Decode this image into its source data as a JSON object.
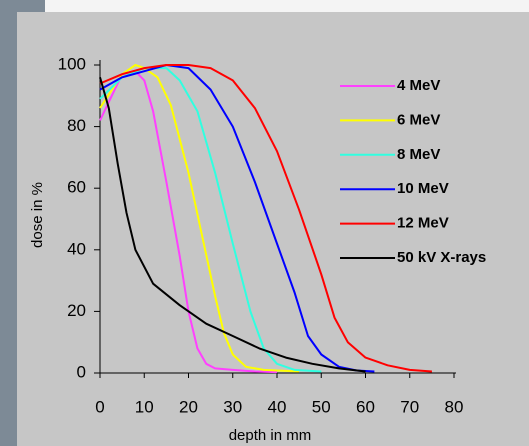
{
  "chart_data": {
    "type": "line",
    "xlabel": "depth in mm",
    "ylabel": "dose in %",
    "xlim": [
      0,
      80
    ],
    "xticks": [
      0,
      10,
      20,
      30,
      40,
      50,
      60,
      70,
      80
    ],
    "ylim": [
      0,
      100
    ],
    "yticks": [
      0,
      20,
      40,
      60,
      80,
      100
    ],
    "grid": false,
    "legend": "upper right",
    "series": [
      {
        "name": "4 MeV",
        "color": "#ff40ff",
        "x": [
          0,
          5,
          8,
          10,
          12,
          15,
          18,
          20,
          22,
          24,
          26,
          30,
          35,
          40
        ],
        "values": [
          82,
          97,
          98,
          95,
          85,
          62,
          38,
          20,
          8,
          3,
          1.5,
          1,
          0.5,
          0.3
        ]
      },
      {
        "name": "6 MeV",
        "color": "#ffff00",
        "x": [
          0,
          5,
          8,
          10,
          13,
          16,
          20,
          23,
          26,
          28,
          30,
          33,
          37,
          45
        ],
        "values": [
          86,
          97,
          100,
          99,
          96,
          87,
          65,
          45,
          25,
          13,
          6,
          2,
          1,
          0.5
        ]
      },
      {
        "name": "8 MeV",
        "color": "#30ffe0",
        "x": [
          0,
          5,
          10,
          15,
          18,
          22,
          26,
          30,
          34,
          37,
          40,
          44,
          50
        ],
        "values": [
          89,
          96,
          99,
          99,
          95,
          85,
          65,
          42,
          20,
          8,
          3,
          1,
          0.5
        ]
      },
      {
        "name": "10 MeV",
        "color": "#0000ff",
        "x": [
          0,
          5,
          10,
          15,
          20,
          25,
          30,
          35,
          40,
          44,
          47,
          50,
          54,
          58,
          62
        ],
        "values": [
          92,
          96,
          98,
          100,
          99,
          92,
          80,
          62,
          42,
          26,
          12,
          6,
          2,
          0.8,
          0.5
        ]
      },
      {
        "name": "12 MeV",
        "color": "#ff0000",
        "x": [
          0,
          5,
          10,
          15,
          20,
          25,
          30,
          35,
          40,
          45,
          50,
          53,
          56,
          60,
          65,
          70,
          75
        ],
        "values": [
          94,
          97,
          99,
          100,
          100,
          99,
          95,
          86,
          72,
          53,
          32,
          18,
          10,
          5,
          2.5,
          1,
          0.5
        ]
      },
      {
        "name": "50 kV X-rays",
        "color": "#000000",
        "x": [
          0,
          2,
          4,
          6,
          8,
          12,
          18,
          24,
          30,
          36,
          42,
          48,
          54,
          60
        ],
        "values": [
          96,
          86,
          68,
          52,
          40,
          29,
          22,
          16,
          12,
          8,
          5,
          3,
          1.5,
          0.5
        ]
      }
    ]
  }
}
